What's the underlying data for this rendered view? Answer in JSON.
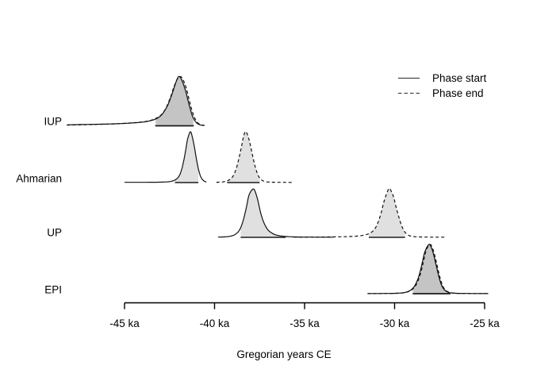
{
  "style": {
    "background": "#ffffff",
    "curve_color": "#111111",
    "fill_color": "rgba(0,0,0,0.12)",
    "ci_bar_color": "#1a1a1a",
    "axis_color": "#000000",
    "text_color": "#000000"
  },
  "chart_data": {
    "type": "area",
    "title": "",
    "xlabel": "Gregorian years CE",
    "x_unit": "ka",
    "xlim": [
      -48.5,
      -24.5
    ],
    "axis_range": [
      -45,
      -25
    ],
    "grid": false,
    "legend_position": "top-right",
    "legend": {
      "items": [
        {
          "label": "Phase start",
          "style": "solid"
        },
        {
          "label": "Phase end",
          "style": "dashed"
        }
      ]
    },
    "x_axis": {
      "label": "Gregorian years CE",
      "ticks": [
        {
          "value": -45,
          "label": "-45 ka"
        },
        {
          "value": -40,
          "label": "-40 ka"
        },
        {
          "value": -35,
          "label": "-35 ka"
        },
        {
          "value": -30,
          "label": "-30 ka"
        },
        {
          "value": -25,
          "label": "-25 ka"
        }
      ]
    },
    "phases": [
      {
        "name": "IUP",
        "start": {
          "peak_ka": -42.0,
          "ci_ka": [
            -43.25,
            -41.2
          ],
          "points": [
            [
              -48.2,
              0.02
            ],
            [
              -47.5,
              0.025
            ],
            [
              -46.8,
              0.03
            ],
            [
              -46.0,
              0.035
            ],
            [
              -45.2,
              0.045
            ],
            [
              -44.5,
              0.06
            ],
            [
              -44.0,
              0.075
            ],
            [
              -43.6,
              0.1
            ],
            [
              -43.2,
              0.15
            ],
            [
              -42.9,
              0.24
            ],
            [
              -42.6,
              0.42
            ],
            [
              -42.35,
              0.66
            ],
            [
              -42.15,
              0.88
            ],
            [
              -42.0,
              1.0
            ],
            [
              -41.85,
              0.95
            ],
            [
              -41.65,
              0.76
            ],
            [
              -41.45,
              0.48
            ],
            [
              -41.25,
              0.22
            ],
            [
              -41.05,
              0.08
            ],
            [
              -40.85,
              0.025
            ],
            [
              -40.6,
              0.006
            ]
          ]
        },
        "end": {
          "peak_ka": -41.9,
          "ci_ka": [
            -43.3,
            -41.15
          ],
          "points": [
            [
              -48.2,
              0.015
            ],
            [
              -47.4,
              0.02
            ],
            [
              -46.6,
              0.028
            ],
            [
              -45.8,
              0.038
            ],
            [
              -45.0,
              0.05
            ],
            [
              -44.3,
              0.068
            ],
            [
              -43.8,
              0.09
            ],
            [
              -43.4,
              0.13
            ],
            [
              -43.0,
              0.21
            ],
            [
              -42.7,
              0.36
            ],
            [
              -42.45,
              0.58
            ],
            [
              -42.25,
              0.8
            ],
            [
              -42.05,
              0.96
            ],
            [
              -41.9,
              1.0
            ],
            [
              -41.78,
              0.96
            ],
            [
              -41.6,
              0.8
            ],
            [
              -41.4,
              0.52
            ],
            [
              -41.2,
              0.25
            ],
            [
              -41.0,
              0.09
            ],
            [
              -40.8,
              0.03
            ],
            [
              -40.55,
              0.008
            ]
          ]
        }
      },
      {
        "name": "Ahmarian",
        "start": {
          "peak_ka": -41.35,
          "ci_ka": [
            -42.2,
            -40.9
          ],
          "points": [
            [
              -45.0,
              0.004
            ],
            [
              -44.0,
              0.005
            ],
            [
              -43.2,
              0.007
            ],
            [
              -42.7,
              0.012
            ],
            [
              -42.4,
              0.025
            ],
            [
              -42.15,
              0.06
            ],
            [
              -41.95,
              0.14
            ],
            [
              -41.78,
              0.32
            ],
            [
              -41.62,
              0.6
            ],
            [
              -41.5,
              0.85
            ],
            [
              -41.35,
              1.0
            ],
            [
              -41.25,
              0.92
            ],
            [
              -41.12,
              0.7
            ],
            [
              -41.0,
              0.45
            ],
            [
              -40.88,
              0.24
            ],
            [
              -40.75,
              0.1
            ],
            [
              -40.6,
              0.035
            ],
            [
              -40.45,
              0.01
            ]
          ]
        },
        "end": {
          "peak_ka": -38.3,
          "ci_ka": [
            -39.3,
            -37.5
          ],
          "points": [
            [
              -39.9,
              0.005
            ],
            [
              -39.5,
              0.015
            ],
            [
              -39.2,
              0.05
            ],
            [
              -38.95,
              0.14
            ],
            [
              -38.75,
              0.33
            ],
            [
              -38.55,
              0.63
            ],
            [
              -38.4,
              0.89
            ],
            [
              -38.3,
              1.0
            ],
            [
              -38.2,
              0.97
            ],
            [
              -38.05,
              0.8
            ],
            [
              -37.9,
              0.55
            ],
            [
              -37.75,
              0.32
            ],
            [
              -37.6,
              0.16
            ],
            [
              -37.45,
              0.07
            ],
            [
              -37.25,
              0.025
            ],
            [
              -37.0,
              0.01
            ],
            [
              -36.6,
              0.006
            ],
            [
              -36.1,
              0.004
            ],
            [
              -35.7,
              0.003
            ]
          ]
        }
      },
      {
        "name": "UP",
        "start": {
          "peak_ka": -37.85,
          "ci_ka": [
            -38.55,
            -36.05
          ],
          "points": [
            [
              -39.8,
              0.005
            ],
            [
              -39.4,
              0.01
            ],
            [
              -39.1,
              0.025
            ],
            [
              -38.85,
              0.06
            ],
            [
              -38.6,
              0.16
            ],
            [
              -38.4,
              0.36
            ],
            [
              -38.22,
              0.64
            ],
            [
              -38.08,
              0.88
            ],
            [
              -37.85,
              1.0
            ],
            [
              -37.72,
              0.92
            ],
            [
              -37.58,
              0.74
            ],
            [
              -37.45,
              0.52
            ],
            [
              -37.3,
              0.34
            ],
            [
              -37.15,
              0.22
            ],
            [
              -37.0,
              0.14
            ],
            [
              -36.8,
              0.085
            ],
            [
              -36.6,
              0.05
            ],
            [
              -36.35,
              0.03
            ],
            [
              -36.05,
              0.018
            ],
            [
              -35.7,
              0.01
            ],
            [
              -35.2,
              0.006
            ],
            [
              -34.5,
              0.004
            ],
            [
              -33.4,
              0.003
            ]
          ]
        },
        "end": {
          "peak_ka": -30.33,
          "ci_ka": [
            -31.43,
            -29.42
          ],
          "points": [
            [
              -35.6,
              0.003
            ],
            [
              -34.8,
              0.004
            ],
            [
              -34.0,
              0.006
            ],
            [
              -33.2,
              0.01
            ],
            [
              -32.6,
              0.015
            ],
            [
              -32.1,
              0.025
            ],
            [
              -31.7,
              0.045
            ],
            [
              -31.4,
              0.08
            ],
            [
              -31.15,
              0.15
            ],
            [
              -30.95,
              0.28
            ],
            [
              -30.75,
              0.5
            ],
            [
              -30.58,
              0.75
            ],
            [
              -30.33,
              1.0
            ],
            [
              -30.2,
              0.96
            ],
            [
              -30.06,
              0.84
            ],
            [
              -29.92,
              0.63
            ],
            [
              -29.75,
              0.4
            ],
            [
              -29.6,
              0.23
            ],
            [
              -29.45,
              0.12
            ],
            [
              -29.3,
              0.06
            ],
            [
              -29.1,
              0.025
            ],
            [
              -28.85,
              0.012
            ],
            [
              -28.5,
              0.007
            ],
            [
              -28.0,
              0.004
            ],
            [
              -27.2,
              0.003
            ]
          ]
        }
      },
      {
        "name": "EPI",
        "start": {
          "peak_ka": -28.1,
          "ci_ka": [
            -29.0,
            -26.95
          ],
          "points": [
            [
              -31.5,
              0.003
            ],
            [
              -30.8,
              0.004
            ],
            [
              -30.2,
              0.006
            ],
            [
              -29.8,
              0.01
            ],
            [
              -29.5,
              0.02
            ],
            [
              -29.25,
              0.045
            ],
            [
              -29.05,
              0.09
            ],
            [
              -28.85,
              0.18
            ],
            [
              -28.65,
              0.36
            ],
            [
              -28.47,
              0.62
            ],
            [
              -28.32,
              0.85
            ],
            [
              -28.1,
              1.0
            ],
            [
              -27.98,
              0.95
            ],
            [
              -27.85,
              0.82
            ],
            [
              -27.7,
              0.59
            ],
            [
              -27.55,
              0.36
            ],
            [
              -27.4,
              0.18
            ],
            [
              -27.25,
              0.085
            ],
            [
              -27.08,
              0.038
            ],
            [
              -26.9,
              0.018
            ],
            [
              -26.6,
              0.008
            ],
            [
              -26.1,
              0.005
            ],
            [
              -25.4,
              0.003
            ],
            [
              -24.8,
              0.002
            ]
          ]
        },
        "end": {
          "peak_ka": -28.03,
          "ci_ka": [
            -28.95,
            -26.9
          ],
          "points": [
            [
              -31.5,
              0.002
            ],
            [
              -30.7,
              0.004
            ],
            [
              -30.1,
              0.006
            ],
            [
              -29.7,
              0.012
            ],
            [
              -29.4,
              0.025
            ],
            [
              -29.15,
              0.055
            ],
            [
              -28.95,
              0.11
            ],
            [
              -28.75,
              0.22
            ],
            [
              -28.55,
              0.42
            ],
            [
              -28.38,
              0.68
            ],
            [
              -28.24,
              0.89
            ],
            [
              -28.03,
              1.0
            ],
            [
              -27.91,
              0.94
            ],
            [
              -27.78,
              0.79
            ],
            [
              -27.63,
              0.56
            ],
            [
              -27.48,
              0.33
            ],
            [
              -27.33,
              0.16
            ],
            [
              -27.16,
              0.07
            ],
            [
              -26.98,
              0.03
            ],
            [
              -26.73,
              0.012
            ],
            [
              -26.4,
              0.006
            ],
            [
              -25.8,
              0.004
            ],
            [
              -25.0,
              0.002
            ],
            [
              -24.8,
              0.002
            ]
          ]
        }
      }
    ]
  }
}
